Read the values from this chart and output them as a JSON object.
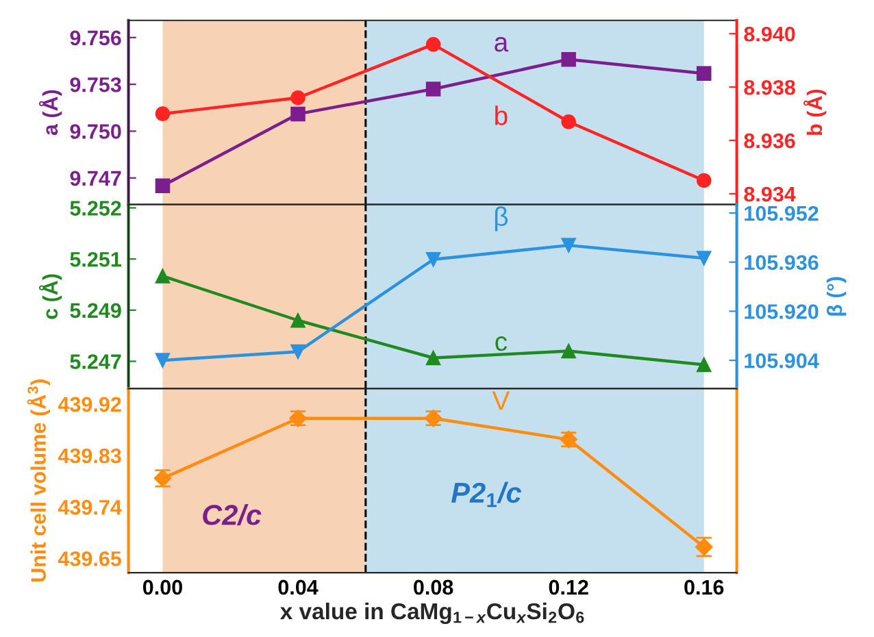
{
  "chart_data": [
    {
      "type": "line",
      "ylabel": "a (Å)",
      "y2label": "b (Å)",
      "x": [
        0.0,
        0.04,
        0.08,
        0.12,
        0.16
      ],
      "xlim": [
        -0.0101,
        0.1697
      ],
      "tick_labels": "y",
      "ylim": [
        9.7453,
        9.7571
      ],
      "yticks": [
        {
          "value": 9.747,
          "label": "9.747"
        },
        {
          "value": 9.75,
          "label": "9.750"
        },
        {
          "value": 9.753,
          "label": "9.753"
        },
        {
          "value": 9.756,
          "label": "9.756"
        }
      ],
      "y2lim": [
        8.9336,
        8.9405
      ],
      "y2ticks": [
        {
          "value": 8.934,
          "label": "8.934"
        },
        {
          "value": 8.936,
          "label": "8.936"
        },
        {
          "value": 8.938,
          "label": "8.938"
        },
        {
          "value": 8.94,
          "label": "8.940"
        }
      ],
      "series": [
        {
          "name": "a",
          "color": "#7b1f8e",
          "marker": "square",
          "values": [
            9.7465,
            9.7511,
            9.7527,
            9.7546,
            9.7537
          ]
        },
        {
          "name": "b",
          "color": "#ff2424",
          "marker": "circle",
          "axis": "y2",
          "values": [
            8.937,
            8.9376,
            8.9396,
            8.9367,
            8.9345
          ]
        }
      ],
      "ref_lines": [
        {
          "axis": "x",
          "value": 0.06,
          "color": "#000000",
          "line_style": "dashed"
        }
      ],
      "bands": [
        {
          "axis": "x",
          "from": 0.0,
          "to": 0.06,
          "color": "#f8d2b4"
        },
        {
          "axis": "x",
          "from": 0.06,
          "to": 0.16,
          "color": "#c4e0ee"
        }
      ],
      "grid": false
    },
    {
      "type": "line",
      "ylabel": "c (Å)",
      "y2label": "β (°)",
      "x": [
        0.0,
        0.04,
        0.08,
        0.12,
        0.16
      ],
      "xlim": [
        -0.0101,
        0.1697
      ],
      "tick_labels": "y",
      "ylim": [
        5.2467,
        5.2521
      ],
      "yticks": [
        {
          "value": 5.2475,
          "label": "5.247"
        },
        {
          "value": 5.249,
          "label": "5.249"
        },
        {
          "value": 5.2505,
          "label": "5.251"
        },
        {
          "value": 5.252,
          "label": "5.252"
        }
      ],
      "y2lim": [
        105.8948,
        105.9548
      ],
      "y2ticks": [
        105.904,
        {
          "value": 105.92,
          "label": "105.920"
        },
        105.936,
        105.952
      ],
      "series": [
        {
          "name": "c",
          "color": "#1f8a1f",
          "marker": "triangle",
          "values": [
            5.25,
            5.2487,
            5.2476,
            5.2478,
            5.2474
          ]
        },
        {
          "name": "β",
          "color": "#2b92e0",
          "marker": "triangle_down",
          "axis": "y2",
          "values": [
            105.904,
            105.9068,
            105.9369,
            105.9415,
            105.9373
          ]
        }
      ],
      "ref_lines": [
        {
          "axis": "x",
          "value": 0.06,
          "color": "#000000",
          "line_style": "dashed"
        }
      ],
      "bands": [
        {
          "axis": "x",
          "from": 0.0,
          "to": 0.06,
          "color": "#f8d2b4"
        },
        {
          "axis": "x",
          "from": 0.06,
          "to": 0.16,
          "color": "#c4e0ee"
        }
      ],
      "grid": false
    },
    {
      "type": "line",
      "ylabel": "Unit cell volume (Å$^{3}$)",
      "xlabel": "x value in CaMg$_{1−x}$Cu$_{x}$Si$_{2}$O$_{6}$",
      "x": [
        0.0,
        0.04,
        0.08,
        0.12,
        0.16
      ],
      "xlim": [
        -0.0101,
        0.1697
      ],
      "xticks": [
        {
          "value": 0.0,
          "label": "0.00"
        },
        {
          "value": 0.04,
          "label": "0.04"
        },
        {
          "value": 0.08,
          "label": "0.08"
        },
        {
          "value": 0.12,
          "label": "0.12"
        },
        {
          "value": 0.16,
          "label": "0.16"
        }
      ],
      "ylim": [
        439.625,
        439.947
      ],
      "yticks": [
        439.65,
        439.74,
        439.83,
        439.92
      ],
      "series": [
        {
          "name": "V",
          "color": "#ff8c0f",
          "marker": "diamond",
          "values": [
            439.79,
            439.895,
            439.895,
            439.858,
            439.67
          ],
          "errors": [
            0.014,
            0.012,
            0.012,
            0.012,
            0.016
          ]
        }
      ],
      "annotations": [
        "C2/c",
        "P2$_{1}$/c"
      ],
      "ref_lines": [
        {
          "axis": "x",
          "value": 0.06,
          "color": "#000000",
          "line_style": "dashed"
        }
      ],
      "bands": [
        {
          "axis": "x",
          "from": 0.0,
          "to": 0.06,
          "color": "#f8d2b4"
        },
        {
          "axis": "x",
          "from": 0.06,
          "to": 0.16,
          "color": "#c4e0ee"
        }
      ],
      "grid": false
    }
  ]
}
